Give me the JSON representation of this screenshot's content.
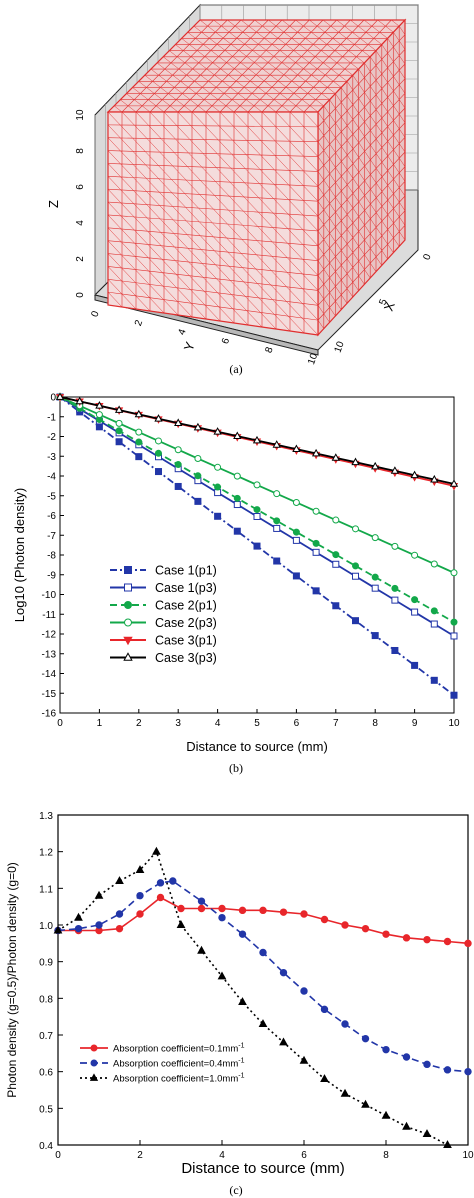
{
  "captions": {
    "a": "(a)",
    "b": "(b)",
    "c": "(c)"
  },
  "colors": {
    "red": "#e8262b",
    "blue": "#2236a8",
    "green": "#13a84a",
    "black": "#000000",
    "panel_a_face": "#f2d8d8",
    "panel_a_mesh": "#e03030"
  },
  "chart_data": [
    {
      "type": "mesh3d",
      "axes": {
        "z": {
          "label": "Z",
          "ticks": [
            "0",
            "2",
            "4",
            "6",
            "8",
            "10"
          ]
        },
        "y": {
          "label": "Y",
          "ticks": [
            "0",
            "2",
            "4",
            "6",
            "8",
            "10"
          ]
        },
        "x": {
          "label": "X",
          "ticks": [
            "0",
            "5",
            "10"
          ]
        }
      },
      "range": [
        0,
        10
      ]
    },
    {
      "type": "line",
      "xlabel": "Distance to source (mm)",
      "ylabel": "Log10 (Photon density)",
      "xlim": [
        0,
        10
      ],
      "ylim": [
        -16,
        0
      ],
      "xticks": [
        "0",
        "1",
        "2",
        "3",
        "4",
        "5",
        "6",
        "7",
        "8",
        "9",
        "10"
      ],
      "yticks": [
        "0",
        "-1",
        "-2",
        "-3",
        "-4",
        "-5",
        "-6",
        "-7",
        "-8",
        "-9",
        "-10",
        "-11",
        "-12",
        "-13",
        "-14",
        "-15",
        "-16"
      ],
      "legend_position": "lower-left",
      "series": [
        {
          "name": "Case 1(p1)",
          "color": "#2236a8",
          "dash": "dashdot",
          "marker": "square-filled",
          "x": [
            0,
            10
          ],
          "y": [
            0,
            -15.1
          ]
        },
        {
          "name": "Case 1(p3)",
          "color": "#2236a8",
          "dash": "solid",
          "marker": "square-open",
          "x": [
            0,
            10
          ],
          "y": [
            0,
            -12.1
          ]
        },
        {
          "name": "Case 2(p1)",
          "color": "#13a84a",
          "dash": "dash",
          "marker": "circle-filled",
          "x": [
            0,
            10
          ],
          "y": [
            0,
            -11.4
          ]
        },
        {
          "name": "Case 2(p3)",
          "color": "#13a84a",
          "dash": "solid",
          "marker": "circle-open",
          "x": [
            0,
            10
          ],
          "y": [
            0,
            -8.9
          ]
        },
        {
          "name": "Case 3(p1)",
          "color": "#e8262b",
          "dash": "solid",
          "marker": "triangle-down-filled",
          "x": [
            0,
            10
          ],
          "y": [
            0,
            -4.5
          ]
        },
        {
          "name": "Case 3(p3)",
          "color": "#000000",
          "dash": "solid",
          "marker": "triangle-up-open",
          "x": [
            0,
            10
          ],
          "y": [
            0,
            -4.4
          ]
        }
      ]
    },
    {
      "type": "line",
      "xlabel": "Distance to source (mm)",
      "ylabel": "Photon density (g=0.5)/Photon density (g=0)",
      "xlim": [
        0,
        10
      ],
      "ylim": [
        0.4,
        1.3
      ],
      "xticks": [
        "0",
        "2",
        "4",
        "6",
        "8",
        "10"
      ],
      "yticks": [
        "0.4",
        "0.5",
        "0.6",
        "0.7",
        "0.8",
        "0.9",
        "1.0",
        "1.1",
        "1.2",
        "1.3"
      ],
      "legend_position": "lower-left",
      "series": [
        {
          "name": "Absorption coefficient=0.1mm",
          "sup": "-1",
          "color": "#e8262b",
          "dash": "solid",
          "marker": "circle-filled",
          "x": [
            0,
            0.5,
            1,
            1.5,
            2,
            2.5,
            3,
            3.5,
            4,
            4.5,
            5,
            5.5,
            6,
            6.5,
            7,
            7.5,
            8,
            8.5,
            9,
            9.5,
            10
          ],
          "y": [
            0.985,
            0.985,
            0.985,
            0.99,
            1.03,
            1.075,
            1.045,
            1.045,
            1.045,
            1.04,
            1.04,
            1.035,
            1.03,
            1.015,
            1.0,
            0.99,
            0.975,
            0.965,
            0.96,
            0.955,
            0.95
          ]
        },
        {
          "name": "Absorption coefficient=0.4mm",
          "sup": "-1",
          "color": "#2236a8",
          "dash": "dash",
          "marker": "circle-filled",
          "x": [
            0,
            0.5,
            1,
            1.5,
            2,
            2.5,
            2.8,
            3.5,
            4,
            4.5,
            5,
            5.5,
            6,
            6.5,
            7,
            7.5,
            8,
            8.5,
            9,
            9.5,
            10
          ],
          "y": [
            0.985,
            0.99,
            1.0,
            1.03,
            1.08,
            1.115,
            1.12,
            1.065,
            1.02,
            0.975,
            0.925,
            0.87,
            0.82,
            0.77,
            0.73,
            0.69,
            0.66,
            0.64,
            0.62,
            0.605,
            0.6
          ]
        },
        {
          "name": "Absorption coefficient=1.0mm",
          "sup": "-1",
          "color": "#000000",
          "dash": "dot",
          "marker": "triangle-up-filled",
          "x": [
            0,
            0.5,
            1,
            1.5,
            2,
            2.4,
            3,
            3.5,
            4,
            4.5,
            5,
            5.5,
            6,
            6.5,
            7,
            7.5,
            8,
            8.5,
            9,
            9.5
          ],
          "y": [
            0.985,
            1.02,
            1.08,
            1.12,
            1.15,
            1.2,
            1.0,
            0.93,
            0.86,
            0.79,
            0.73,
            0.68,
            0.63,
            0.58,
            0.54,
            0.51,
            0.48,
            0.45,
            0.43,
            0.4
          ]
        }
      ]
    }
  ]
}
